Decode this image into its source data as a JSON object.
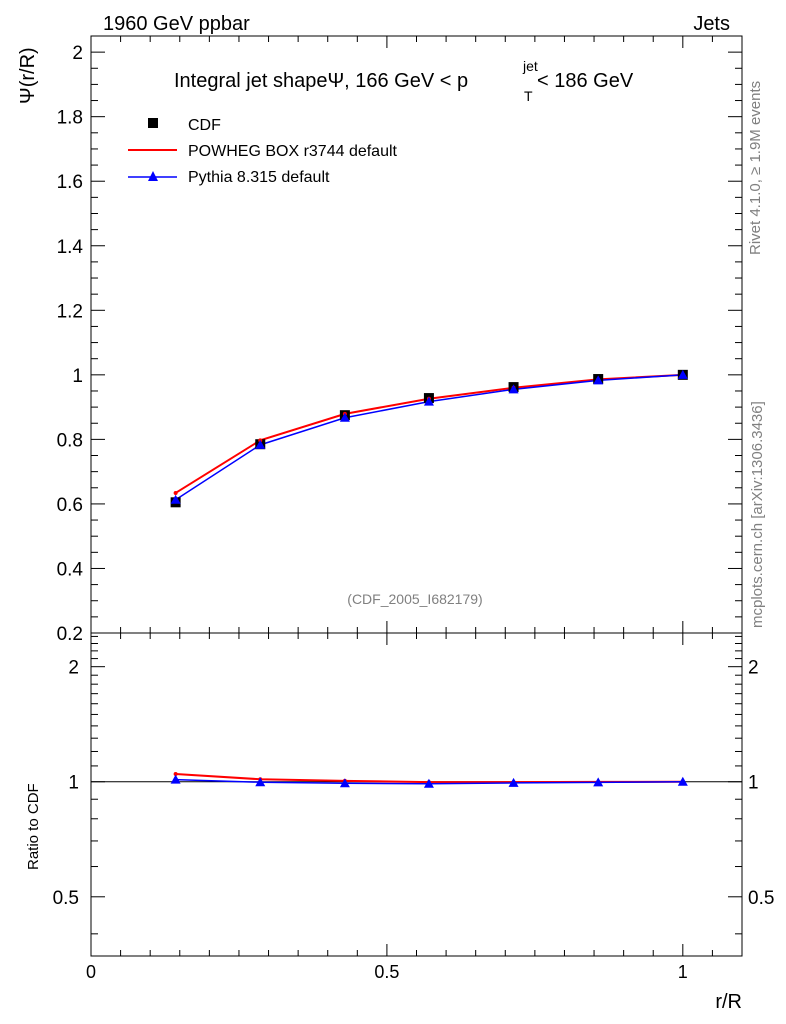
{
  "header": {
    "left": "1960 GeV ppbar",
    "right": "Jets"
  },
  "side_labels": {
    "rivet": "Rivet 4.1.0, ≥ 1.9M events",
    "mcplots": "mcplots.cern.ch [arXiv:1306.3436]"
  },
  "chart_data": {
    "type": "line",
    "title_main": "Integral jet shapeΨ, 166 GeV < p",
    "title_sup": "jet",
    "title_sub": "T",
    "title_end": " < 186 GeV",
    "ylabel": "Ψ(r/R)",
    "xlabel": "r/R",
    "ratio_ylabel": "Ratio to CDF",
    "watermark": "(CDF_2005_I682179)",
    "xlim": [
      0,
      1.1
    ],
    "ylim": [
      0.2,
      2.05
    ],
    "ratio_ylim": [
      0.35,
      2.45
    ],
    "x_ticks": [
      0,
      0.5,
      1
    ],
    "x_tick_labels": [
      "0",
      "0.5",
      "1"
    ],
    "y_ticks": [
      0.2,
      0.4,
      0.6,
      0.8,
      1,
      1.2,
      1.4,
      1.6,
      1.8,
      2
    ],
    "y_tick_labels": [
      "0.2",
      "0.4",
      "0.6",
      "0.8",
      "1",
      "1.2",
      "1.4",
      "1.6",
      "1.8",
      "2"
    ],
    "ratio_ticks": [
      0.5,
      1,
      2
    ],
    "ratio_tick_labels": [
      "0.5",
      "1",
      "2"
    ],
    "x": [
      0.143,
      0.286,
      0.429,
      0.571,
      0.714,
      0.857,
      1.0
    ],
    "series": [
      {
        "name": "CDF",
        "color": "#000000",
        "marker": "square",
        "values": [
          0.605,
          0.785,
          0.875,
          0.928,
          0.962,
          0.987,
          1.0
        ]
      },
      {
        "name": "POWHEG BOX r3744 default",
        "color": "#ff0000",
        "marker": "none",
        "values": [
          0.634,
          0.797,
          0.879,
          0.926,
          0.96,
          0.986,
          1.0
        ]
      },
      {
        "name": "Pythia 8.315 default",
        "color": "#0000ff",
        "marker": "triangle",
        "values": [
          0.613,
          0.783,
          0.867,
          0.917,
          0.955,
          0.983,
          1.0
        ]
      }
    ],
    "ratio_series": [
      {
        "name": "POWHEG BOX r3744 default",
        "color": "#ff0000",
        "values": [
          1.048,
          1.015,
          1.005,
          0.998,
          0.998,
          0.999,
          1.0
        ]
      },
      {
        "name": "Pythia 8.315 default",
        "color": "#0000ff",
        "values": [
          1.013,
          0.997,
          0.991,
          0.988,
          0.993,
          0.996,
          1.0
        ]
      }
    ]
  }
}
